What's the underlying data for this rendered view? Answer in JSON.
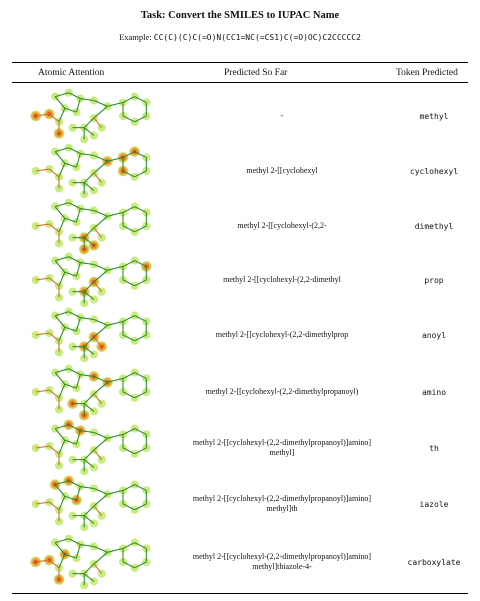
{
  "title": "Task: Convert the SMILES to IUPAC Name",
  "example_label": "Example:",
  "example_smiles": "CC(C)(C)C(=O)N(CC1=NC(=CS1)C(=O)OC)C2CCCCC2",
  "headers": {
    "attention": "Atomic Attention",
    "predicted": "Predicted So Far",
    "token": "Token Predicted"
  },
  "rows": [
    {
      "predicted": "-",
      "token": "methyl",
      "highlights": [
        "O1",
        "O2",
        "C1"
      ]
    },
    {
      "predicted": "methyl 2-[[cyclohexyl",
      "token": "cyclohexyl",
      "highlights": [
        "CY1",
        "CY2",
        "CY6",
        "N1"
      ]
    },
    {
      "predicted": "methyl 2-[[cyclohexyl-(2,2-",
      "token": "dimethyl",
      "highlights": [
        "T2",
        "T3",
        "Q"
      ]
    },
    {
      "predicted": "methyl 2-[[cyclohexyl-(2,2-dimethyl",
      "token": "prop",
      "highlights": [
        "CO",
        "Q",
        "CY3"
      ]
    },
    {
      "predicted": "methyl 2-[[cyclohexyl-(2,2-dimethylprop",
      "token": "anoyl",
      "highlights": [
        "CO",
        "OA",
        "Q"
      ]
    },
    {
      "predicted": "methyl 2-[[cyclohexyl-(2,2-dimethylpropanoyl)",
      "token": "amino",
      "highlights": [
        "N1",
        "CH2",
        "T1",
        "T2"
      ]
    },
    {
      "predicted": "methyl 2-[[cyclohexyl-(2,2-dimethylpropanoyl)]amino]\nmethyl]",
      "token": "th",
      "highlights": [
        "S",
        "R1"
      ]
    },
    {
      "predicted": "methyl 2-[[cyclohexyl-(2,2-dimethylpropanoyl)]amino]\nmethyl]th",
      "token": "iazole",
      "highlights": [
        "R2",
        "S",
        "RN"
      ]
    },
    {
      "predicted": "methyl 2-[[cyclohexyl-(2,2-dimethylpropanoyl)]amino]\nmethyl]thiazole-4-",
      "token": "carboxylate",
      "highlights": [
        "O1",
        "C1",
        "O2",
        "R3"
      ]
    }
  ]
}
